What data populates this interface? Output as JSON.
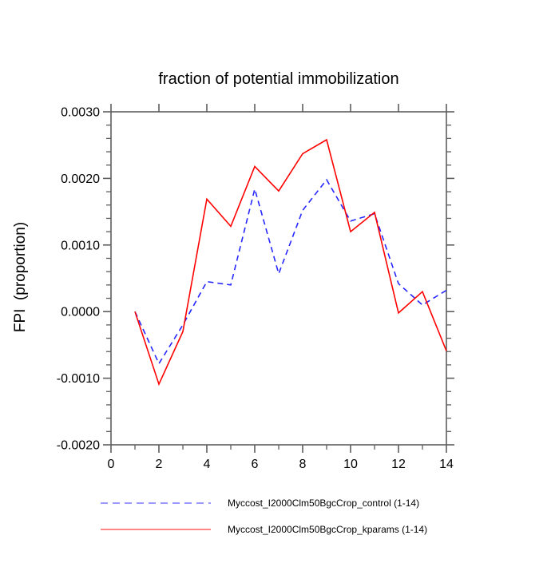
{
  "window": {
    "background": "#ffffff"
  },
  "colors": {
    "frame": "#5e5e5e",
    "text": "#000000",
    "control_blue": "#2727ff",
    "kparams_red": "#ff0000"
  },
  "chart_data": {
    "type": "line",
    "title": "fraction of potential immobilization",
    "xlabel": "",
    "ylabel": "FPI  (proportion)",
    "xlim": [
      0,
      14
    ],
    "ylim": [
      -0.002,
      0.003
    ],
    "grid": false,
    "legend_position": "bottom",
    "x": [
      1,
      2,
      3,
      4,
      5,
      6,
      7,
      8,
      9,
      10,
      11,
      12,
      13,
      14
    ],
    "xticks": {
      "values": [
        0,
        2,
        4,
        6,
        8,
        10,
        12,
        14
      ],
      "labels": [
        "0",
        "2",
        "4",
        "6",
        "8",
        "10",
        "12",
        "14"
      ],
      "minor_step": 1
    },
    "yticks": {
      "values": [
        -0.002,
        -0.001,
        0,
        0.001,
        0.002,
        0.003
      ],
      "labels": [
        "-0.0020",
        "-0.0010",
        "0.0000",
        "0.0010",
        "0.0020",
        "0.0030"
      ],
      "minor_step": 0.0002
    },
    "series": [
      {
        "name": "Myccost_I2000Clm50BgcCrop_control (1-14)",
        "color": "#2727ff",
        "style": "dashed",
        "values": [
          0.0,
          -0.00078,
          -0.0002,
          0.00045,
          0.0004,
          0.00184,
          0.00057,
          0.00152,
          0.00198,
          0.00136,
          0.00147,
          0.00042,
          0.0001,
          0.00032
        ]
      },
      {
        "name": "Myccost_I2000Clm50BgcCrop_kparams (1-14)",
        "color": "#ff0000",
        "style": "solid",
        "values": [
          0.0,
          -0.00109,
          -0.0003,
          0.00169,
          0.00128,
          0.00218,
          0.00181,
          0.00237,
          0.00258,
          0.0012,
          0.00149,
          -2e-05,
          0.0003,
          -0.00059
        ]
      }
    ]
  },
  "legend": {
    "items": [
      {
        "label": "Myccost_I2000Clm50BgcCrop_control (1-14)",
        "color": "#2727ff",
        "style": "dashed"
      },
      {
        "label": "Myccost_I2000Clm50BgcCrop_kparams (1-14)",
        "color": "#ff0000",
        "style": "solid"
      }
    ]
  }
}
